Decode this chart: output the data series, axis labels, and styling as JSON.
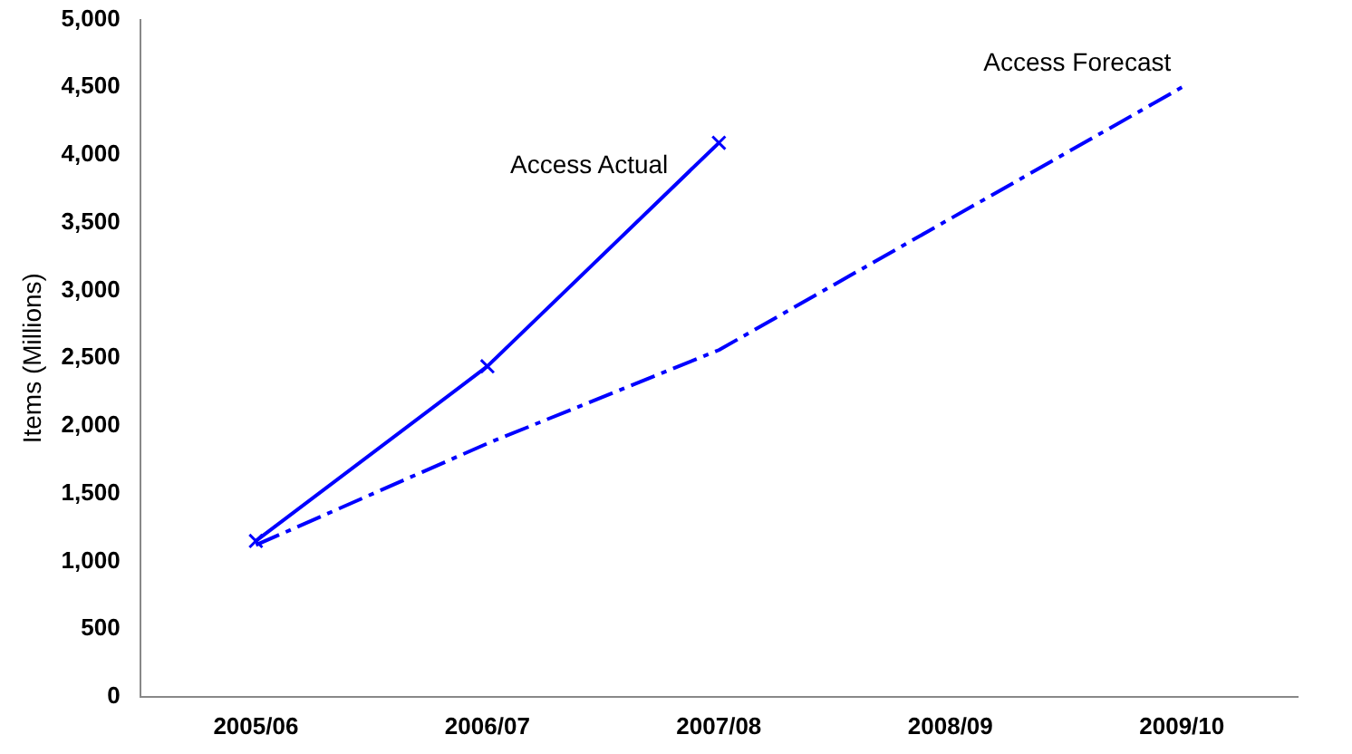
{
  "chart_data": {
    "type": "line",
    "ylabel": "Items (Millions)",
    "categories": [
      "2005/06",
      "2006/07",
      "2007/08",
      "2008/09",
      "2009/10"
    ],
    "ylim": [
      0,
      5000
    ],
    "yticks": [
      {
        "value": 0,
        "label": "0"
      },
      {
        "value": 500,
        "label": "500"
      },
      {
        "value": 1000,
        "label": "1,000"
      },
      {
        "value": 1500,
        "label": "1,500"
      },
      {
        "value": 2000,
        "label": "2,000"
      },
      {
        "value": 2500,
        "label": "2,500"
      },
      {
        "value": 3000,
        "label": "3,000"
      },
      {
        "value": 3500,
        "label": "3,500"
      },
      {
        "value": 4000,
        "label": "4,000"
      },
      {
        "value": 4500,
        "label": "4,500"
      },
      {
        "value": 5000,
        "label": "5,000"
      }
    ],
    "grid": false,
    "legend": false,
    "series": [
      {
        "name": "Access Actual",
        "color": "#0000ff",
        "values": [
          1150,
          2440,
          4090,
          null,
          null
        ],
        "marker": "cross",
        "line_style": "solid"
      },
      {
        "name": "Access Forecast",
        "color": "#0000ff",
        "values": [
          1120,
          1870,
          2560,
          3530,
          4500
        ],
        "marker": "none",
        "line_style": "dashed"
      }
    ]
  }
}
